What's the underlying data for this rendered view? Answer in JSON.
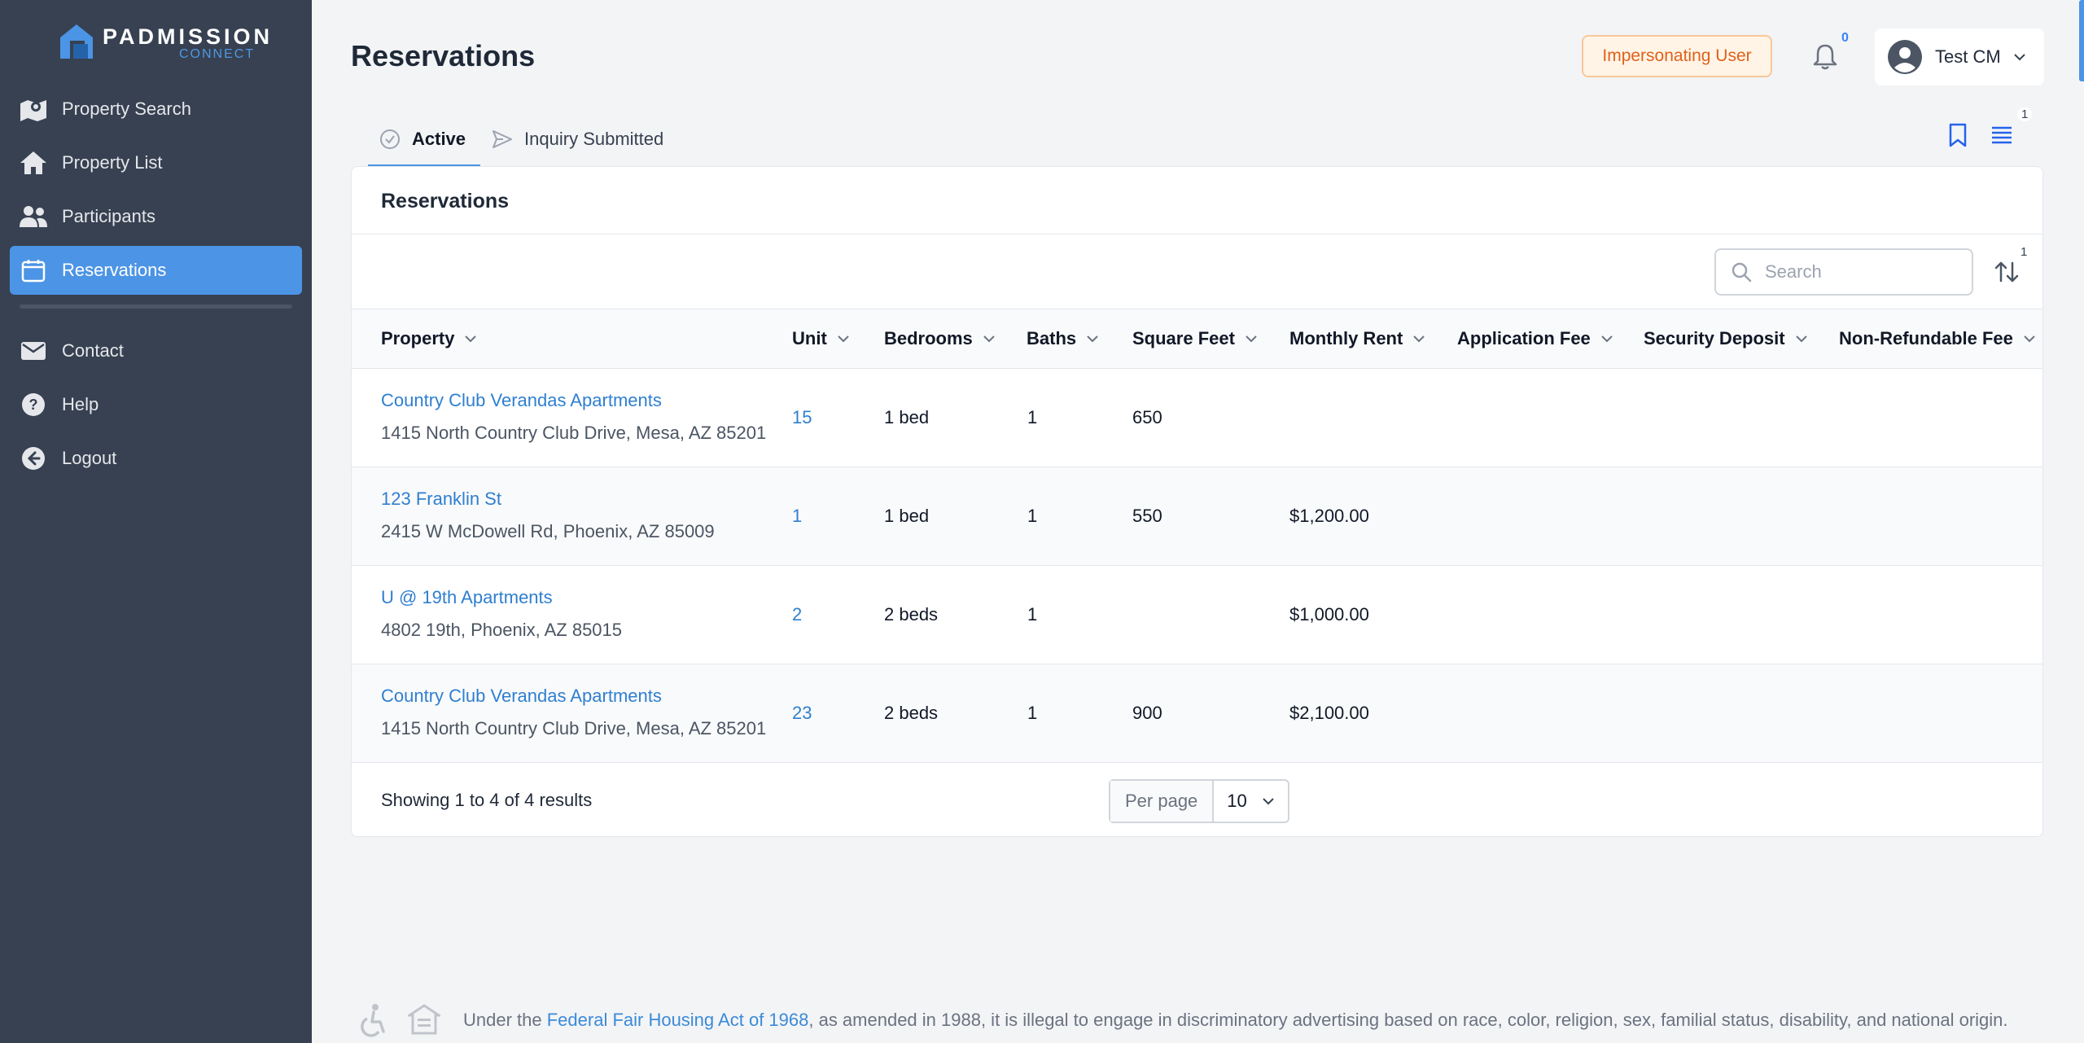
{
  "brand": {
    "name": "PADMISSION",
    "sub": "CONNECT",
    "accent": "#4c94e5"
  },
  "sidebar": {
    "items": [
      {
        "label": "Property Search",
        "icon": "map-marker-icon"
      },
      {
        "label": "Property List",
        "icon": "home-icon"
      },
      {
        "label": "Participants",
        "icon": "users-icon"
      },
      {
        "label": "Reservations",
        "icon": "calendar-icon",
        "active": true
      }
    ],
    "secondary": [
      {
        "label": "Contact",
        "icon": "envelope-icon"
      },
      {
        "label": "Help",
        "icon": "question-circle-icon"
      },
      {
        "label": "Logout",
        "icon": "arrow-left-circle-icon"
      }
    ]
  },
  "header": {
    "title": "Reservations",
    "impersonating": "Impersonating User",
    "notifications_count": "0",
    "user_name": "Test CM"
  },
  "tabs": [
    {
      "label": "Active",
      "icon": "check-circle-icon",
      "active": true
    },
    {
      "label": "Inquiry Submitted",
      "icon": "paper-plane-icon",
      "active": false
    }
  ],
  "toolbar": {
    "columns_badge": "1",
    "sort_badge": "1"
  },
  "table": {
    "title": "Reservations",
    "search_placeholder": "Search",
    "columns": [
      "Property",
      "Unit",
      "Bedrooms",
      "Baths",
      "Square Feet",
      "Monthly Rent",
      "Application Fee",
      "Security Deposit",
      "Non-Refundable Fee"
    ],
    "rows": [
      {
        "property": "Country Club Verandas Apartments",
        "address": "1415 North Country Club Drive, Mesa, AZ 85201",
        "unit": "15",
        "bedrooms": "1 bed",
        "baths": "1",
        "sqft": "650",
        "rent": "",
        "app_fee": "",
        "deposit": "",
        "nonref_fee": ""
      },
      {
        "property": "123 Franklin St",
        "address": "2415 W McDowell Rd, Phoenix, AZ 85009",
        "unit": "1",
        "bedrooms": "1 bed",
        "baths": "1",
        "sqft": "550",
        "rent": "$1,200.00",
        "app_fee": "",
        "deposit": "",
        "nonref_fee": ""
      },
      {
        "property": "U @ 19th Apartments",
        "address": "4802 19th, Phoenix, AZ 85015",
        "unit": "2",
        "bedrooms": "2 beds",
        "baths": "1",
        "sqft": "",
        "rent": "$1,000.00",
        "app_fee": "",
        "deposit": "",
        "nonref_fee": ""
      },
      {
        "property": "Country Club Verandas Apartments",
        "address": "1415 North Country Club Drive, Mesa, AZ 85201",
        "unit": "23",
        "bedrooms": "2 beds",
        "baths": "1",
        "sqft": "900",
        "rent": "$2,100.00",
        "app_fee": "",
        "deposit": "",
        "nonref_fee": ""
      }
    ],
    "showing": "Showing 1 to 4 of 4 results",
    "per_page_label": "Per page",
    "per_page_value": "10"
  },
  "footer": {
    "prefix": "Under the ",
    "link": "Federal Fair Housing Act of 1968",
    "suffix": ", as amended in 1988, it is illegal to engage in discriminatory advertising based on race, color, religion, sex, familial status, disability, and national origin."
  }
}
